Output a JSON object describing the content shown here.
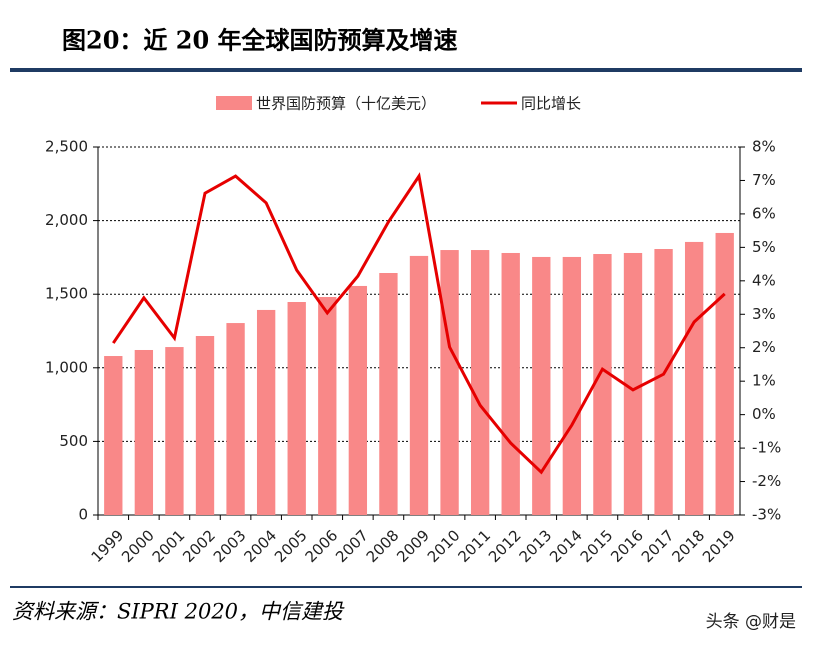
{
  "title": "图20：近 20 年全球国防预算及增速",
  "source": "资料来源：SIPRI 2020，中信建投",
  "watermark": "头条 @财是",
  "chart_data": {
    "type": "bar",
    "categories": [
      "1999",
      "2000",
      "2001",
      "2002",
      "2003",
      "2004",
      "2005",
      "2006",
      "2007",
      "2008",
      "2009",
      "2010",
      "2011",
      "2012",
      "2013",
      "2014",
      "2015",
      "2016",
      "2017",
      "2018",
      "2019"
    ],
    "series": [
      {
        "name": "世界国防预算（十亿美元）",
        "type": "bar",
        "color": "#f98888",
        "values": [
          1080,
          1121,
          1141,
          1216,
          1304,
          1393,
          1447,
          1481,
          1556,
          1644,
          1760,
          1800,
          1800,
          1780,
          1753,
          1753,
          1773,
          1780,
          1807,
          1855,
          1916
        ]
      },
      {
        "name": "同比增长",
        "type": "line",
        "axis": "y2",
        "color": "#e60000",
        "values": [
          2.14,
          3.49,
          2.29,
          6.62,
          7.13,
          6.33,
          4.32,
          3.04,
          4.14,
          5.76,
          7.13,
          2.02,
          0.28,
          -0.85,
          -1.72,
          -0.31,
          1.36,
          0.74,
          1.21,
          2.77,
          3.61
        ]
      }
    ],
    "ylim": [
      0,
      2500
    ],
    "yticks": [
      0,
      500,
      {
        "value": 1000,
        "label": "1,000"
      },
      {
        "value": 1500,
        "label": "1,500"
      },
      {
        "value": 2000,
        "label": "2,000"
      },
      {
        "value": 2500,
        "label": "2,500"
      }
    ],
    "y2lim": [
      -3,
      8
    ],
    "y2ticks": [
      {
        "value": -3,
        "label": "-3%"
      },
      {
        "value": -2,
        "label": "-2%"
      },
      {
        "value": -1,
        "label": "-1%"
      },
      {
        "value": 0,
        "label": "0%"
      },
      {
        "value": 1,
        "label": "1%"
      },
      {
        "value": 2,
        "label": "2%"
      },
      {
        "value": 3,
        "label": "3%"
      },
      {
        "value": 4,
        "label": "4%"
      },
      {
        "value": 5,
        "label": "5%"
      },
      {
        "value": 6,
        "label": "6%"
      },
      {
        "value": 7,
        "label": "7%"
      },
      {
        "value": 8,
        "label": "8%"
      }
    ],
    "grid": true
  }
}
